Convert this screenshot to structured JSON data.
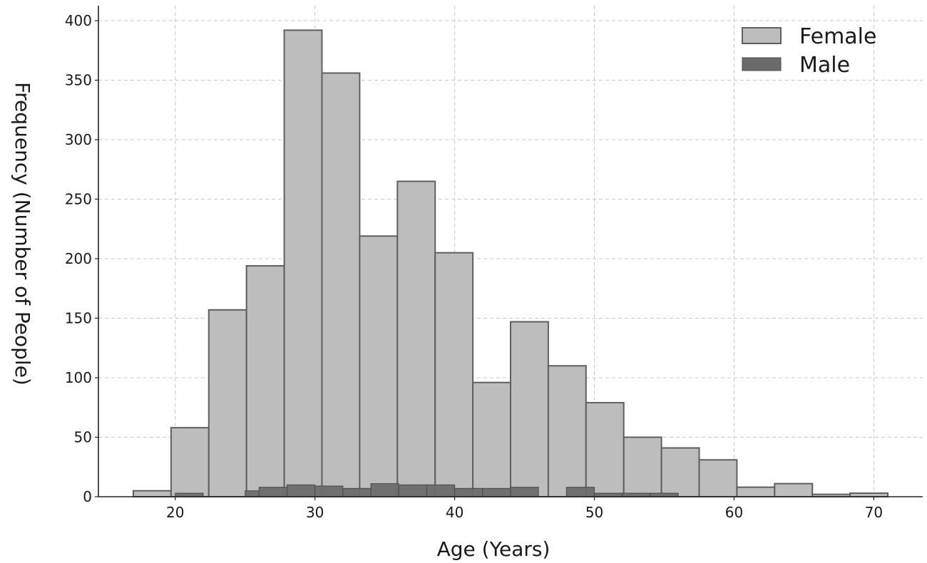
{
  "chart_data": {
    "type": "bar",
    "subtype": "histogram-overlay",
    "title": "",
    "xlabel": "Age (Years)",
    "ylabel": "Frequency (Number of People)",
    "xlim": [
      14.5,
      73.5
    ],
    "ylim": [
      0,
      400
    ],
    "xticks": [
      20,
      30,
      40,
      50,
      60,
      70
    ],
    "yticks": [
      0,
      50,
      100,
      150,
      200,
      250,
      300,
      350,
      400
    ],
    "grid": true,
    "legend_position": "top-right",
    "series": [
      {
        "name": "Female",
        "color": "#bdbdbd",
        "edge_color": "#5f5f5f",
        "bins": [
          [
            17.0,
            19.7,
            5
          ],
          [
            19.7,
            22.4,
            58
          ],
          [
            22.4,
            25.1,
            157
          ],
          [
            25.1,
            27.8,
            194
          ],
          [
            27.8,
            30.5,
            392
          ],
          [
            30.5,
            33.2,
            356
          ],
          [
            33.2,
            35.9,
            219
          ],
          [
            35.9,
            38.6,
            265
          ],
          [
            38.6,
            41.3,
            205
          ],
          [
            41.3,
            44.0,
            96
          ],
          [
            44.0,
            46.7,
            147
          ],
          [
            46.7,
            49.4,
            110
          ],
          [
            49.4,
            52.1,
            79
          ],
          [
            52.1,
            54.8,
            50
          ],
          [
            54.8,
            57.5,
            41
          ],
          [
            57.5,
            60.2,
            31
          ],
          [
            60.2,
            62.9,
            8
          ],
          [
            62.9,
            65.6,
            11
          ],
          [
            65.6,
            68.3,
            2
          ],
          [
            68.3,
            71.0,
            3
          ]
        ]
      },
      {
        "name": "Male",
        "color": "#6b6b6b",
        "edge_color": "#4a4a4a",
        "bins": [
          [
            20.0,
            22.0,
            3
          ],
          [
            25.0,
            26.0,
            5
          ],
          [
            26.0,
            28.0,
            8
          ],
          [
            28.0,
            30.0,
            10
          ],
          [
            30.0,
            32.0,
            9
          ],
          [
            32.0,
            34.0,
            7
          ],
          [
            34.0,
            36.0,
            11
          ],
          [
            36.0,
            38.0,
            10
          ],
          [
            38.0,
            40.0,
            10
          ],
          [
            40.0,
            42.0,
            7
          ],
          [
            42.0,
            44.0,
            7
          ],
          [
            44.0,
            46.0,
            8
          ],
          [
            48.0,
            50.0,
            8
          ],
          [
            50.0,
            52.0,
            3
          ],
          [
            52.0,
            54.0,
            3
          ],
          [
            54.0,
            56.0,
            3
          ]
        ]
      }
    ]
  }
}
